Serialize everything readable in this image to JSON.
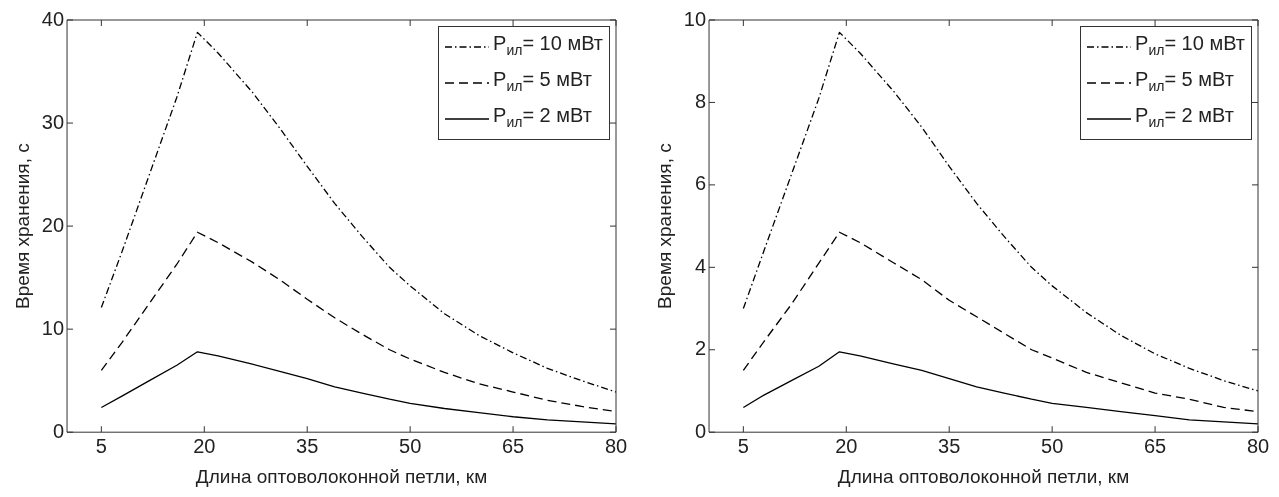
{
  "chart_data": [
    {
      "type": "line",
      "xlabel": "Длина оптоволоконной петли, км",
      "ylabel": "Время хранения, с",
      "x": [
        5,
        8,
        12,
        16,
        19,
        22,
        27,
        31,
        35,
        39,
        43,
        47,
        50,
        55,
        60,
        65,
        70,
        75,
        80
      ],
      "xlim": [
        0,
        80
      ],
      "xticks": [
        5,
        20,
        35,
        50,
        65,
        80
      ],
      "ylim": [
        0,
        40
      ],
      "yticks": [
        0,
        10,
        20,
        30,
        40
      ],
      "grid": false,
      "legend": "top right",
      "marker": "none",
      "series": [
        {
          "name": "P$_{ил}$= 10 мВт",
          "color": "#000000",
          "line_style": "dashdot",
          "values": [
            12.1,
            17.5,
            25,
            32.5,
            38.8,
            36.8,
            33,
            29.5,
            25.8,
            22.2,
            19,
            16,
            14.2,
            11.5,
            9.4,
            7.7,
            6.2,
            5,
            3.9
          ]
        },
        {
          "name": "P$_{ил}$= 5 мВт",
          "color": "#000000",
          "line_style": "dashed",
          "values": [
            6,
            8.7,
            12.5,
            16.3,
            19.4,
            18.4,
            16.5,
            14.8,
            12.9,
            11.1,
            9.5,
            8,
            7.1,
            5.8,
            4.7,
            3.9,
            3.1,
            2.5,
            2
          ]
        },
        {
          "name": "P$_{ил}$= 2 мВт",
          "color": "#000000",
          "line_style": "solid",
          "values": [
            2.4,
            3.5,
            5,
            6.5,
            7.8,
            7.4,
            6.6,
            5.9,
            5.2,
            4.4,
            3.8,
            3.2,
            2.8,
            2.3,
            1.9,
            1.5,
            1.2,
            1,
            0.8
          ]
        }
      ]
    },
    {
      "type": "line",
      "xlabel": "Длина оптоволоконной петли, км",
      "ylabel": "Время хранения, с",
      "x": [
        5,
        8,
        12,
        16,
        19,
        22,
        27,
        31,
        35,
        39,
        43,
        47,
        50,
        55,
        60,
        65,
        70,
        75,
        80
      ],
      "xlim": [
        0,
        80
      ],
      "xticks": [
        5,
        20,
        35,
        50,
        65,
        80
      ],
      "ylim": [
        0,
        10
      ],
      "yticks": [
        0,
        2,
        4,
        6,
        8,
        10
      ],
      "grid": false,
      "legend": "top right",
      "marker": "none",
      "series": [
        {
          "name": "P$_{ил}$= 10 мВт",
          "color": "#000000",
          "line_style": "dashdot",
          "values": [
            3,
            4.4,
            6.25,
            8.1,
            9.7,
            9.2,
            8.25,
            7.4,
            6.45,
            5.55,
            4.75,
            4,
            3.55,
            2.9,
            2.35,
            1.9,
            1.55,
            1.25,
            1
          ]
        },
        {
          "name": "P$_{ил}$= 5 мВт",
          "color": "#000000",
          "line_style": "dashed",
          "values": [
            1.5,
            2.2,
            3.1,
            4.1,
            4.85,
            4.6,
            4.1,
            3.7,
            3.2,
            2.8,
            2.4,
            2,
            1.8,
            1.45,
            1.2,
            0.95,
            0.8,
            0.6,
            0.5
          ]
        },
        {
          "name": "P$_{ил}$= 2 мВт",
          "color": "#000000",
          "line_style": "solid",
          "values": [
            0.6,
            0.9,
            1.25,
            1.6,
            1.95,
            1.85,
            1.65,
            1.5,
            1.3,
            1.1,
            0.95,
            0.8,
            0.7,
            0.6,
            0.5,
            0.4,
            0.3,
            0.25,
            0.2
          ]
        }
      ]
    }
  ]
}
